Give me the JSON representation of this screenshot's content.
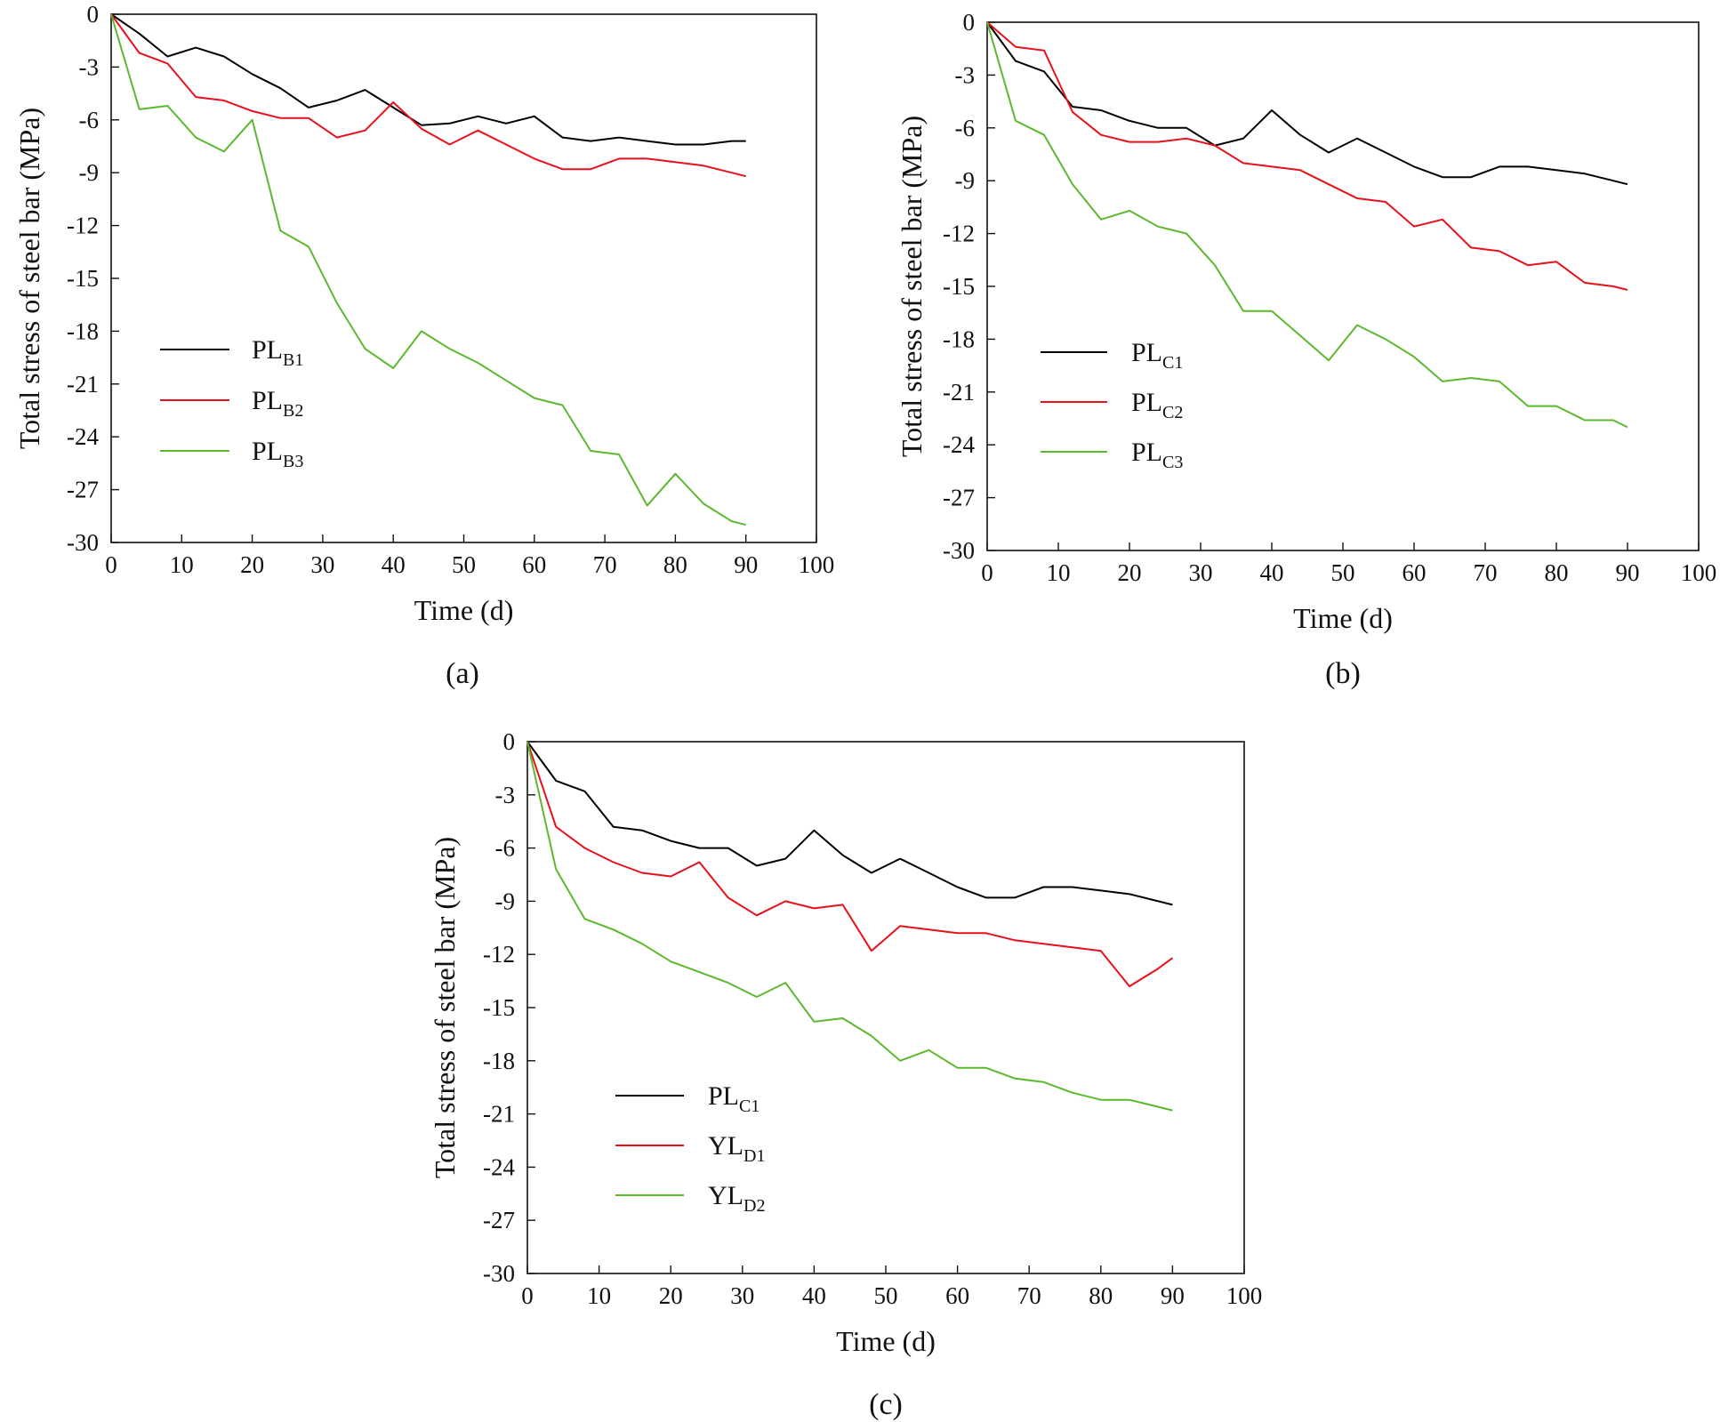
{
  "chart_data": [
    {
      "type": "line",
      "panel_label": "(a)",
      "xlabel": "Time (d)",
      "ylabel": "Total stress of steel bar (MPa)",
      "xlim": [
        0,
        100
      ],
      "ylim": [
        -30,
        0
      ],
      "x_ticks": [
        "0",
        "10",
        "20",
        "30",
        "40",
        "50",
        "60",
        "70",
        "80",
        "90",
        "100"
      ],
      "y_ticks": [
        "0",
        "-3",
        "-6",
        "-9",
        "-12",
        "-15",
        "-18",
        "-21",
        "-24",
        "-27",
        "-30"
      ],
      "legend_position": "lower-left",
      "series": [
        {
          "name": "PL",
          "sub": "B1",
          "color": "#000000",
          "x": [
            0,
            4,
            8,
            12,
            16,
            20,
            24,
            28,
            32,
            36,
            40,
            44,
            48,
            52,
            56,
            60,
            64,
            68,
            72,
            76,
            80,
            84,
            88,
            90
          ],
          "values": [
            0,
            -1.1,
            -2.4,
            -1.9,
            -2.4,
            -3.4,
            -4.2,
            -5.3,
            -4.9,
            -4.3,
            -5.3,
            -6.3,
            -6.2,
            -5.8,
            -6.2,
            -5.8,
            -7.0,
            -7.2,
            -7.0,
            -7.2,
            -7.4,
            -7.4,
            -7.2,
            -7.2
          ]
        },
        {
          "name": "PL",
          "sub": "B2",
          "color": "#e8101a",
          "x": [
            0,
            4,
            8,
            12,
            16,
            20,
            24,
            28,
            32,
            36,
            40,
            44,
            48,
            52,
            56,
            60,
            64,
            68,
            72,
            76,
            80,
            84,
            88,
            90
          ],
          "values": [
            0,
            -2.2,
            -2.8,
            -4.7,
            -4.9,
            -5.5,
            -5.9,
            -5.9,
            -7.0,
            -6.6,
            -5.0,
            -6.5,
            -7.4,
            -6.6,
            -7.4,
            -8.2,
            -8.8,
            -8.8,
            -8.2,
            -8.2,
            -8.4,
            -8.6,
            -9.0,
            -9.2
          ]
        },
        {
          "name": "PL",
          "sub": "B3",
          "color": "#5cb82e",
          "x": [
            0,
            4,
            8,
            12,
            16,
            20,
            24,
            28,
            32,
            36,
            40,
            44,
            48,
            52,
            56,
            60,
            64,
            68,
            72,
            76,
            80,
            84,
            88,
            90
          ],
          "values": [
            0,
            -5.4,
            -5.2,
            -7.0,
            -7.8,
            -6.0,
            -12.3,
            -13.2,
            -16.4,
            -19.0,
            -20.1,
            -18.0,
            -19.0,
            -19.8,
            -20.8,
            -21.8,
            -22.2,
            -24.8,
            -25.0,
            -27.9,
            -26.1,
            -27.8,
            -28.8,
            -29.0
          ]
        }
      ]
    },
    {
      "type": "line",
      "panel_label": "(b)",
      "xlabel": "Time (d)",
      "ylabel": "Total stress of steel bar (MPa)",
      "xlim": [
        0,
        100
      ],
      "ylim": [
        -30,
        0
      ],
      "x_ticks": [
        "0",
        "10",
        "20",
        "30",
        "40",
        "50",
        "60",
        "70",
        "80",
        "90",
        "100"
      ],
      "y_ticks": [
        "0",
        "-3",
        "-6",
        "-9",
        "-12",
        "-15",
        "-18",
        "-21",
        "-24",
        "-27",
        "-30"
      ],
      "legend_position": "lower-left",
      "series": [
        {
          "name": "PL",
          "sub": "C1",
          "color": "#000000",
          "x": [
            0,
            4,
            8,
            12,
            16,
            20,
            24,
            28,
            32,
            36,
            40,
            44,
            48,
            52,
            56,
            60,
            64,
            68,
            72,
            76,
            80,
            84,
            88,
            90
          ],
          "values": [
            0,
            -2.2,
            -2.8,
            -4.8,
            -5.0,
            -5.6,
            -6.0,
            -6.0,
            -7.0,
            -6.6,
            -5.0,
            -6.4,
            -7.4,
            -6.6,
            -7.4,
            -8.2,
            -8.8,
            -8.8,
            -8.2,
            -8.2,
            -8.4,
            -8.6,
            -9.0,
            -9.2
          ]
        },
        {
          "name": "PL",
          "sub": "C2",
          "color": "#e8101a",
          "x": [
            0,
            4,
            8,
            12,
            16,
            20,
            24,
            28,
            32,
            36,
            40,
            44,
            48,
            52,
            56,
            60,
            64,
            68,
            72,
            76,
            80,
            84,
            88,
            90
          ],
          "values": [
            0,
            -1.4,
            -1.6,
            -5.1,
            -6.4,
            -6.8,
            -6.8,
            -6.6,
            -7.0,
            -8.0,
            -8.2,
            -8.4,
            -9.2,
            -10.0,
            -10.2,
            -11.6,
            -11.2,
            -12.8,
            -13.0,
            -13.8,
            -13.6,
            -14.8,
            -15.0,
            -15.2
          ]
        },
        {
          "name": "PL",
          "sub": "C3",
          "color": "#5cb82e",
          "x": [
            0,
            4,
            8,
            12,
            16,
            20,
            24,
            28,
            32,
            36,
            40,
            44,
            48,
            52,
            56,
            60,
            64,
            68,
            72,
            76,
            80,
            84,
            88,
            90
          ],
          "values": [
            0,
            -5.6,
            -6.4,
            -9.2,
            -11.2,
            -10.7,
            -11.6,
            -12.0,
            -13.8,
            -16.4,
            -16.4,
            -17.8,
            -19.2,
            -17.2,
            -18.0,
            -19.0,
            -20.4,
            -20.2,
            -20.4,
            -21.8,
            -21.8,
            -22.6,
            -22.6,
            -23.0
          ]
        }
      ]
    },
    {
      "type": "line",
      "panel_label": "(c)",
      "xlabel": "Time (d)",
      "ylabel": "Total stress of steel bar (MPa)",
      "xlim": [
        0,
        100
      ],
      "ylim": [
        -30,
        0
      ],
      "x_ticks": [
        "0",
        "10",
        "20",
        "30",
        "40",
        "50",
        "60",
        "70",
        "80",
        "90",
        "100"
      ],
      "y_ticks": [
        "0",
        "-3",
        "-6",
        "-9",
        "-12",
        "-15",
        "-18",
        "-21",
        "-24",
        "-27",
        "-30"
      ],
      "legend_position": "lower-left",
      "series": [
        {
          "name": "PL",
          "sub": "C1",
          "color": "#000000",
          "x": [
            0,
            4,
            8,
            12,
            16,
            20,
            24,
            28,
            32,
            36,
            40,
            44,
            48,
            52,
            56,
            60,
            64,
            68,
            72,
            76,
            80,
            84,
            88,
            90
          ],
          "values": [
            0,
            -2.2,
            -2.8,
            -4.8,
            -5.0,
            -5.6,
            -6.0,
            -6.0,
            -7.0,
            -6.6,
            -5.0,
            -6.4,
            -7.4,
            -6.6,
            -7.4,
            -8.2,
            -8.8,
            -8.8,
            -8.2,
            -8.2,
            -8.4,
            -8.6,
            -9.0,
            -9.2
          ]
        },
        {
          "name": "YL",
          "sub": "D1",
          "color": "#e8101a",
          "x": [
            0,
            4,
            8,
            12,
            16,
            20,
            24,
            28,
            32,
            36,
            40,
            44,
            48,
            52,
            56,
            60,
            64,
            68,
            72,
            76,
            80,
            84,
            88,
            90
          ],
          "values": [
            0,
            -4.8,
            -6.0,
            -6.8,
            -7.4,
            -7.6,
            -6.8,
            -8.8,
            -9.8,
            -9.0,
            -9.4,
            -9.2,
            -11.8,
            -10.4,
            -10.6,
            -10.8,
            -10.8,
            -11.2,
            -11.4,
            -11.6,
            -11.8,
            -13.8,
            -12.8,
            -12.2
          ]
        },
        {
          "name": "YL",
          "sub": "D2",
          "color": "#5cb82e",
          "x": [
            0,
            4,
            8,
            12,
            16,
            20,
            24,
            28,
            32,
            36,
            40,
            44,
            48,
            52,
            56,
            60,
            64,
            68,
            72,
            76,
            80,
            84,
            88,
            90
          ],
          "values": [
            0,
            -7.2,
            -10.0,
            -10.6,
            -11.4,
            -12.4,
            -13.0,
            -13.6,
            -14.4,
            -13.6,
            -15.8,
            -15.6,
            -16.6,
            -18.0,
            -17.4,
            -18.4,
            -18.4,
            -19.0,
            -19.2,
            -19.8,
            -20.2,
            -20.2,
            -20.6,
            -20.8
          ]
        }
      ]
    }
  ]
}
